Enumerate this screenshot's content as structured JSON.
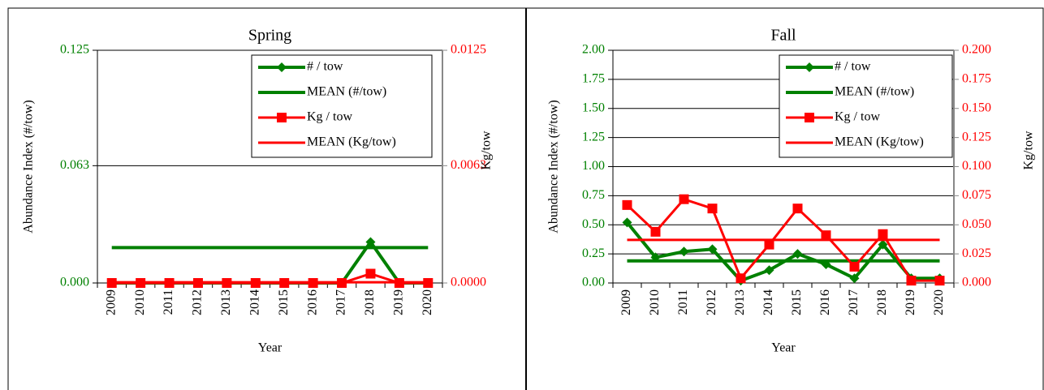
{
  "chart_data": [
    {
      "type": "line",
      "title": "Spring",
      "xlabel": "Year",
      "ylabel": "Abundance Index (#/tow)",
      "y2label": "Kg/tow",
      "categories": [
        "2009",
        "2010",
        "2011",
        "2012",
        "2013",
        "2014",
        "2015",
        "2016",
        "2017",
        "2018",
        "2019",
        "2020"
      ],
      "ylim": [
        0,
        0.125
      ],
      "yticks": [
        {
          "value": 0,
          "label": "0.000"
        },
        0.063,
        0.125
      ],
      "y2lim": [
        0,
        0.0125
      ],
      "y2ticks": [
        {
          "value": 0,
          "label": "0.0000"
        },
        0.0063,
        0.0125
      ],
      "grid": true,
      "legend": "upper right",
      "series": [
        {
          "name": "# / tow",
          "color": "#008000",
          "marker": "diamond",
          "values": [
            0,
            0,
            0,
            0,
            0,
            0,
            0,
            0,
            0,
            0.022,
            0,
            0
          ]
        },
        {
          "name": "MEAN (#/tow)",
          "color": "#008000",
          "marker": "none",
          "values": [
            0.019,
            0.019,
            0.019,
            0.019,
            0.019,
            0.019,
            0.019,
            0.019,
            0.019,
            0.019,
            0.019,
            0.019
          ]
        },
        {
          "name": "Kg / tow",
          "color": "#ff0000",
          "marker": "square",
          "axis": "y2",
          "values": [
            0,
            0,
            0,
            0,
            0,
            0,
            0,
            0,
            0,
            0.0005,
            0,
            0
          ]
        },
        {
          "name": "MEAN (Kg/tow)",
          "color": "#ff0000",
          "marker": "none",
          "axis": "y2",
          "values": [
            4e-05,
            4e-05,
            4e-05,
            4e-05,
            4e-05,
            4e-05,
            4e-05,
            4e-05,
            4e-05,
            4e-05,
            4e-05,
            4e-05
          ]
        }
      ]
    },
    {
      "type": "line",
      "title": "Fall",
      "xlabel": "Year",
      "ylabel": "Abundance Index (#/tow)",
      "y2label": "Kg/tow",
      "categories": [
        "2009",
        "2010",
        "2011",
        "2012",
        "2013",
        "2014",
        "2015",
        "2016",
        "2017",
        "2018",
        "2019",
        "2020"
      ],
      "ylim": [
        0,
        2
      ],
      "yticks": [
        {
          "value": 0,
          "label": "0.00"
        },
        0.25,
        {
          "value": 0.5,
          "label": "0.50"
        },
        0.75,
        {
          "value": 1,
          "label": "1.00"
        },
        1.25,
        {
          "value": 1.5,
          "label": "1.50"
        },
        1.75,
        {
          "value": 2,
          "label": "2.00"
        }
      ],
      "y2lim": [
        0,
        0.2
      ],
      "y2ticks": [
        {
          "value": 0,
          "label": "0.000"
        },
        0.025,
        {
          "value": 0.05,
          "label": "0.050"
        },
        0.075,
        {
          "value": 0.1,
          "label": "0.100"
        },
        0.125,
        {
          "value": 0.15,
          "label": "0.150"
        },
        0.175,
        {
          "value": 0.2,
          "label": "0.200"
        }
      ],
      "grid": true,
      "legend": "upper right",
      "series": [
        {
          "name": "# / tow",
          "color": "#008000",
          "marker": "diamond",
          "values": [
            0.52,
            0.22,
            0.27,
            0.29,
            0.02,
            0.11,
            0.25,
            0.16,
            0.04,
            0.33,
            0.04,
            0.04
          ]
        },
        {
          "name": "MEAN (#/tow)",
          "color": "#008000",
          "marker": "none",
          "values": [
            0.19,
            0.19,
            0.19,
            0.19,
            0.19,
            0.19,
            0.19,
            0.19,
            0.19,
            0.19,
            0.19,
            0.19
          ]
        },
        {
          "name": "Kg / tow",
          "color": "#ff0000",
          "marker": "square",
          "axis": "y2",
          "values": [
            0.067,
            0.044,
            0.072,
            0.064,
            0.004,
            0.033,
            0.064,
            0.041,
            0.014,
            0.042,
            0.002,
            0.002
          ]
        },
        {
          "name": "MEAN (Kg/tow)",
          "color": "#ff0000",
          "marker": "none",
          "axis": "y2",
          "values": [
            0.037,
            0.037,
            0.037,
            0.037,
            0.037,
            0.037,
            0.037,
            0.037,
            0.037,
            0.037,
            0.037,
            0.037
          ]
        }
      ]
    }
  ]
}
